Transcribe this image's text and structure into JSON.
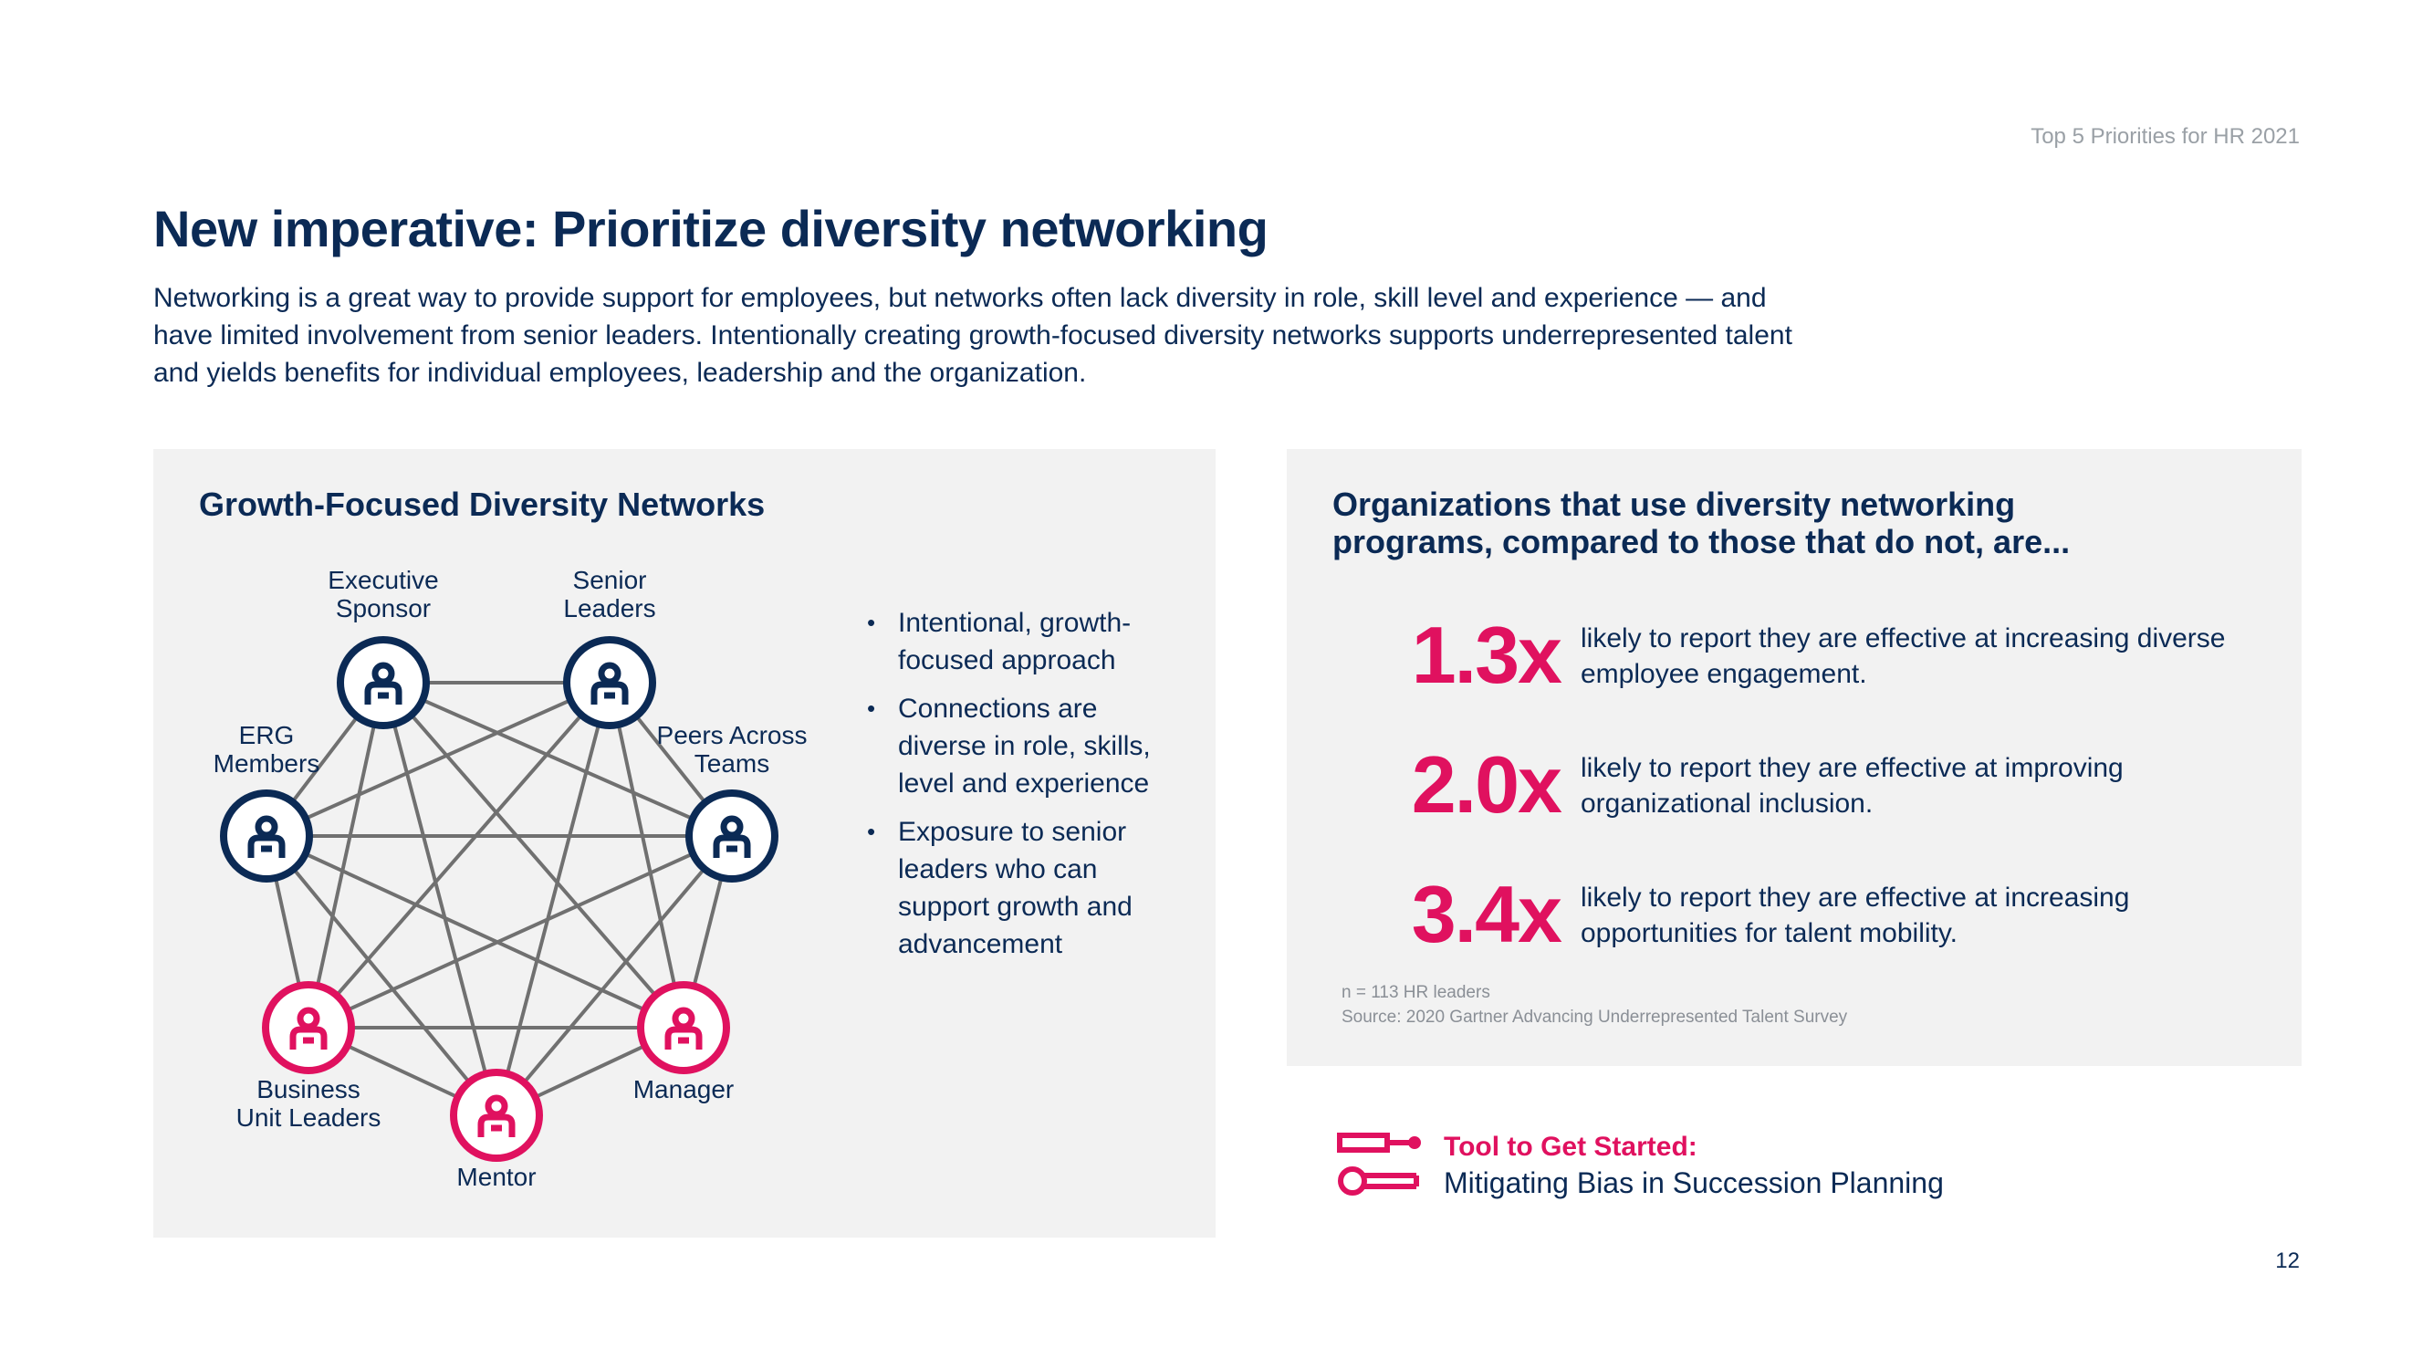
{
  "header": {
    "report_label": "Top 5 Priorities for HR 2021",
    "title": "New imperative: Prioritize diversity networking",
    "intro": "Networking is a great way to provide support for employees, but networks often lack diversity in role, skill level and experience — and have limited involvement from senior leaders. Intentionally creating growth-focused diversity networks supports underrepresented talent and yields benefits for individual employees, leadership and the organization."
  },
  "left_panel": {
    "title": "Growth-Focused Diversity Networks",
    "nodes": [
      {
        "label": "Executive\nSponsor",
        "group": "leadership"
      },
      {
        "label": "Senior\nLeaders",
        "group": "leadership"
      },
      {
        "label": "Peers Across\nTeams",
        "group": "leadership"
      },
      {
        "label": "Manager",
        "group": "support"
      },
      {
        "label": "Mentor",
        "group": "support"
      },
      {
        "label": "Business\nUnit Leaders",
        "group": "support"
      },
      {
        "label": "ERG\nMembers",
        "group": "leadership"
      }
    ],
    "bullets": [
      "Intentional, growth-focused approach",
      "Connections are diverse in role, skills, level and experience",
      "Exposure to senior leaders who can support growth and advancement"
    ],
    "colors": {
      "navy": "#0b2a55",
      "pink": "#e0115f",
      "line": "#707070"
    },
    "icon": "person-icon"
  },
  "right_panel": {
    "title": "Organizations that use diversity networking programs, compared to those that do not, are...",
    "stats": [
      {
        "value": "1.3x",
        "text": "likely to report they are effective at increasing diverse employee engagement."
      },
      {
        "value": "2.0x",
        "text": "likely to report they are effective at improving organizational inclusion."
      },
      {
        "value": "3.4x",
        "text": "likely to report they are effective at increasing opportunities for talent mobility."
      }
    ],
    "footnote_n": "n = 113 HR leaders",
    "footnote_source": "Source: 2020 Gartner Advancing Underrepresented Talent Survey"
  },
  "tool": {
    "heading": "Tool to Get Started:",
    "link": "Mitigating Bias in Succession Planning",
    "icon": "tools-icon"
  },
  "page_number": "12"
}
